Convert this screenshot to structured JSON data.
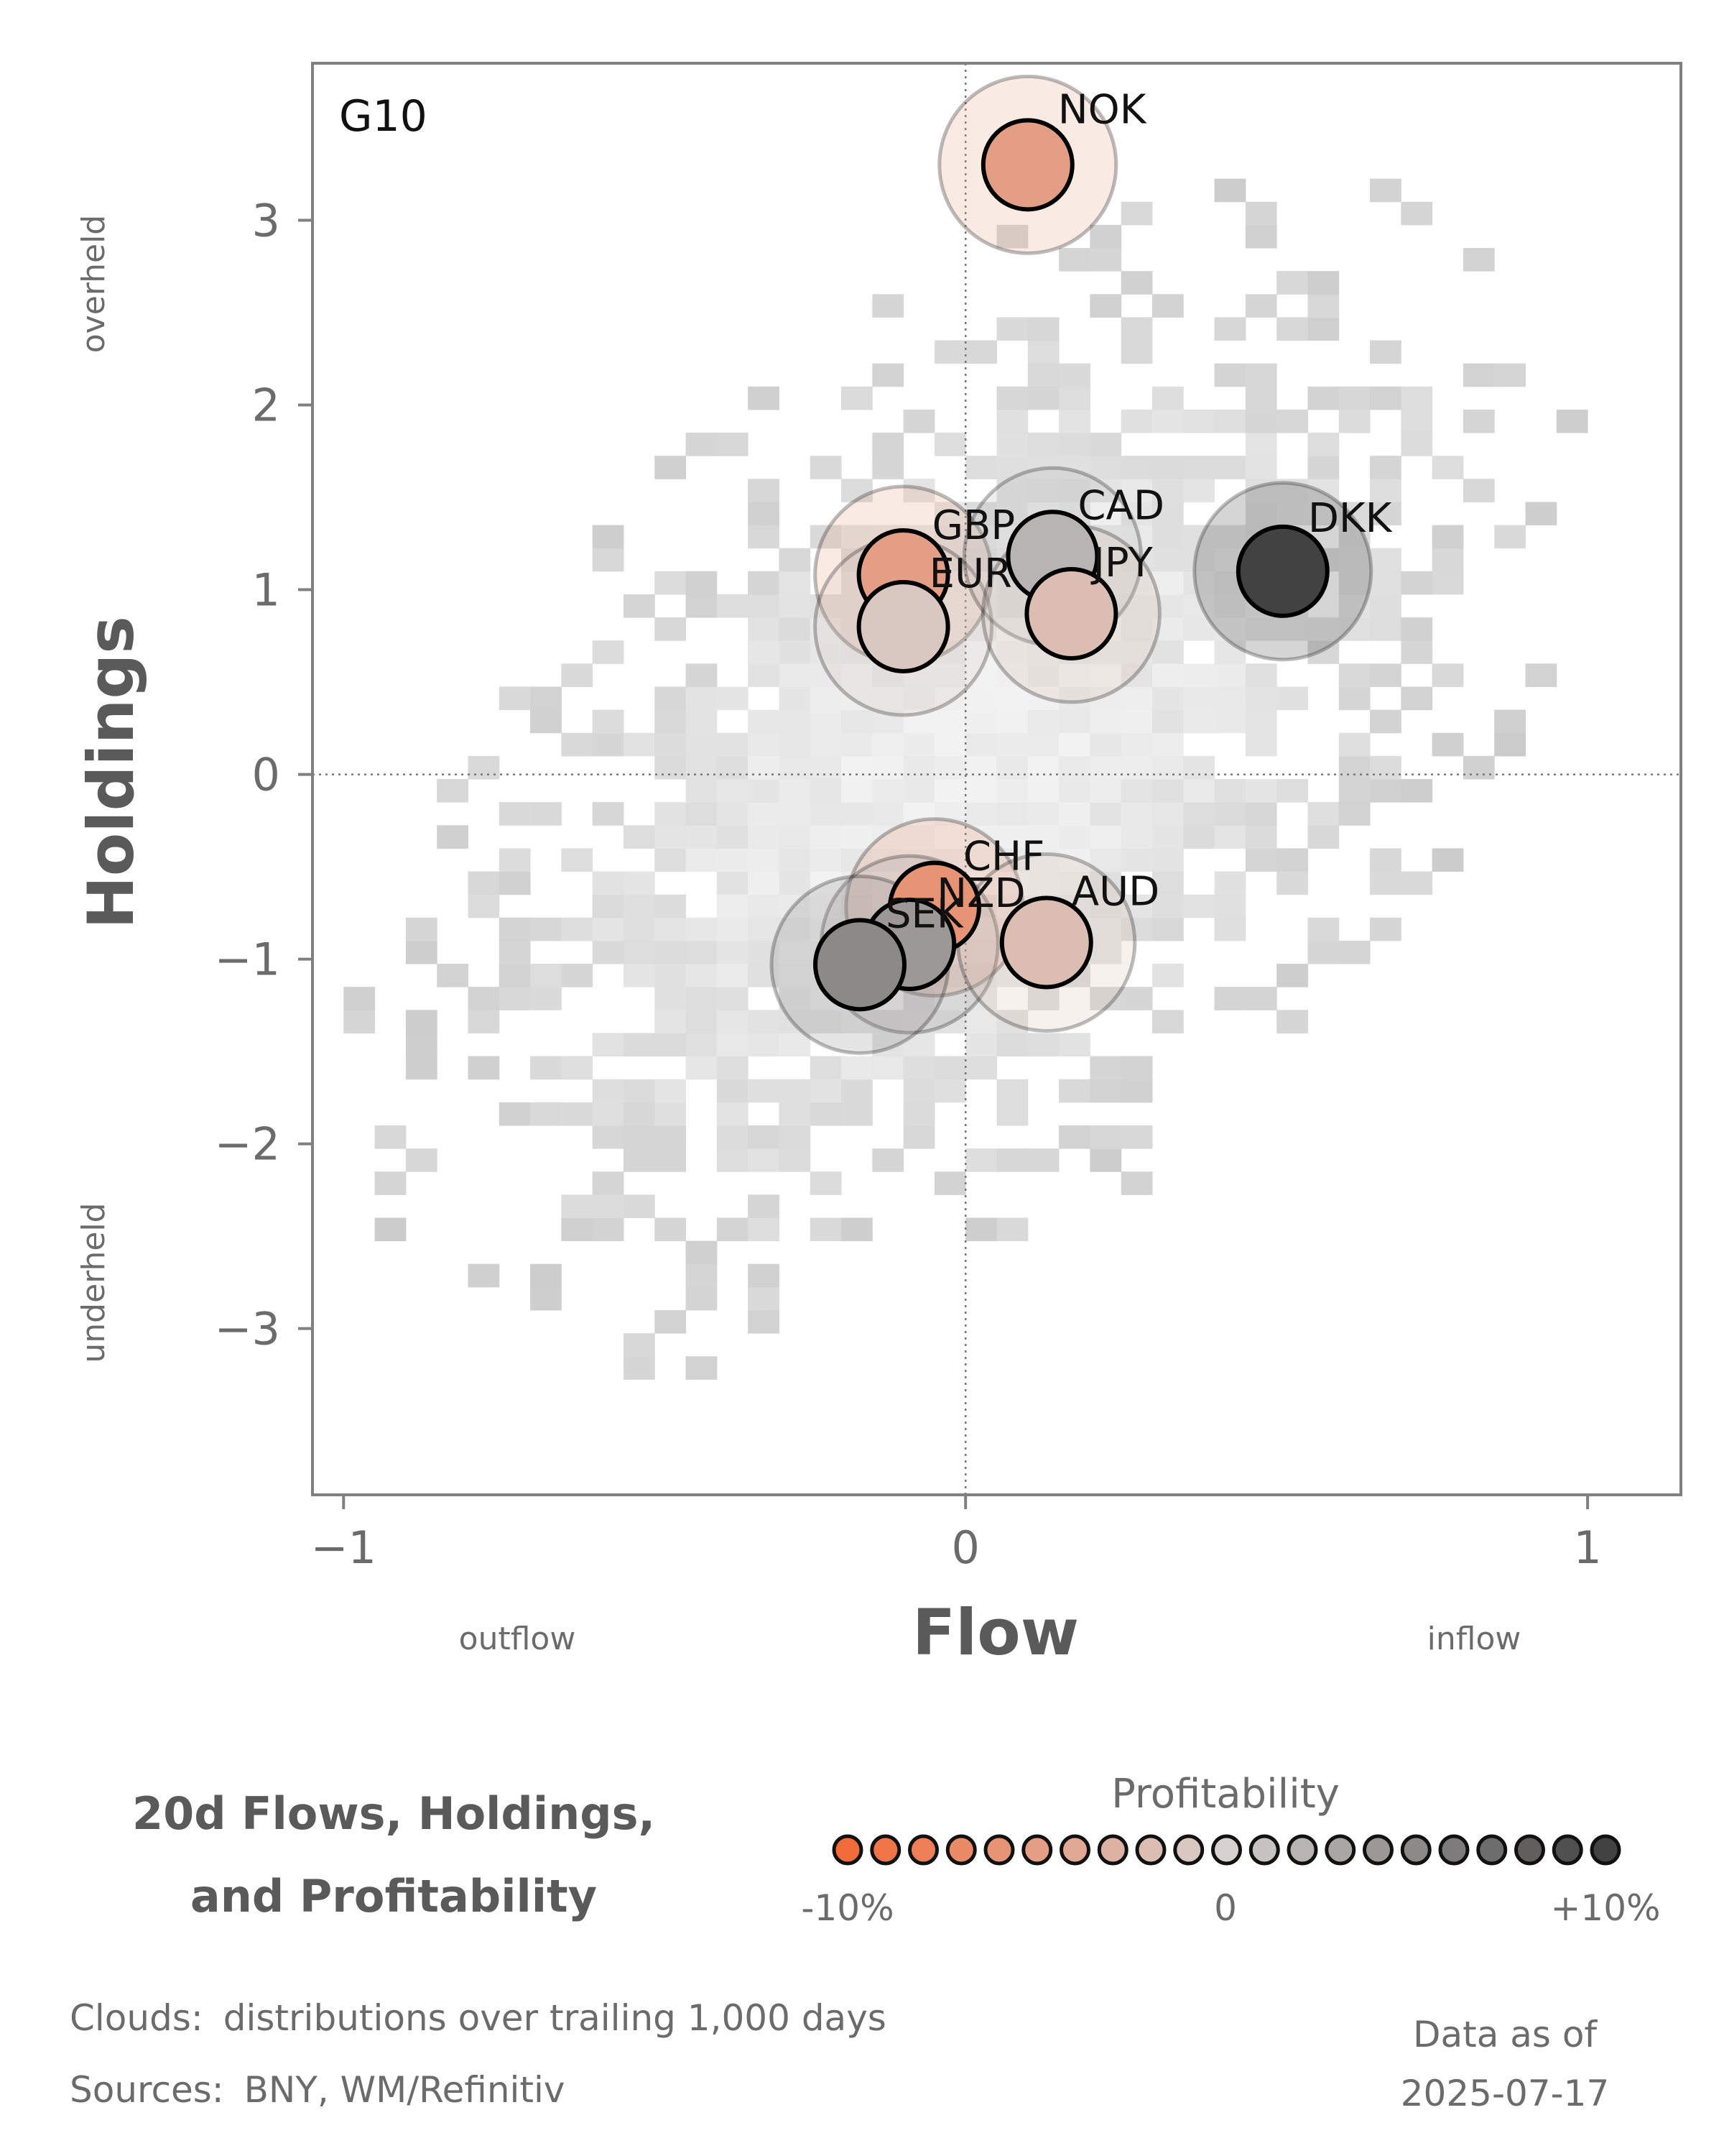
{
  "chart_data": {
    "type": "scatter",
    "panel_label": "G10",
    "xlabel": "Flow",
    "ylabel": "Holdings",
    "x_side_labels": {
      "left": "outflow",
      "right": "inflow"
    },
    "y_side_labels": {
      "top": "overheld",
      "bottom": "underheld"
    },
    "xlim": [
      -1.05,
      1.15
    ],
    "ylim": [
      -3.9,
      3.85
    ],
    "xticks": [
      {
        "value": -1,
        "label": "−1"
      },
      {
        "value": 0,
        "label": "0"
      },
      {
        "value": 1,
        "label": "1"
      }
    ],
    "yticks": [
      {
        "value": 3,
        "label": "3"
      },
      {
        "value": 2,
        "label": "2"
      },
      {
        "value": 1,
        "label": "1"
      },
      {
        "value": 0,
        "label": "0"
      },
      {
        "value": -1,
        "label": "−1"
      },
      {
        "value": -2,
        "label": "−2"
      },
      {
        "value": -3,
        "label": "−3"
      }
    ],
    "reference_lines": {
      "x": 0,
      "y": 0
    },
    "points": [
      {
        "name": "NOK",
        "x": 0.1,
        "y": 3.3,
        "profitability": -5
      },
      {
        "name": "GBP",
        "x": -0.1,
        "y": 1.08,
        "profitability": -5
      },
      {
        "name": "EUR",
        "x": -0.1,
        "y": 0.8,
        "profitability": -1
      },
      {
        "name": "CAD",
        "x": 0.14,
        "y": 1.18,
        "profitability": 2
      },
      {
        "name": "JPY",
        "x": 0.17,
        "y": 0.87,
        "profitability": -2
      },
      {
        "name": "DKK",
        "x": 0.51,
        "y": 1.1,
        "profitability": 10
      },
      {
        "name": "CHF",
        "x": -0.05,
        "y": -0.72,
        "profitability": -6
      },
      {
        "name": "NZD",
        "x": -0.09,
        "y": -0.92,
        "profitability": 4
      },
      {
        "name": "SEK",
        "x": -0.17,
        "y": -1.03,
        "profitability": 5
      },
      {
        "name": "AUD",
        "x": 0.13,
        "y": -0.91,
        "profitability": -2
      }
    ],
    "colorbar": {
      "title": "Profitability",
      "min": -10,
      "max": 10,
      "tick_labels": [
        "-10%",
        "0",
        "+10%"
      ],
      "low_color": "#f26b3a",
      "mid_color": "#d6d1d0",
      "high_color": "#424242"
    },
    "cloud_note": "distributions over trailing 1,000 days"
  },
  "footer": {
    "title_line1": "20d Flows, Holdings,",
    "title_line2": "and Profitability",
    "clouds_label": "Clouds:",
    "sources_label": "Sources:",
    "sources": "BNY, WM/Refinitiv",
    "data_as_of_label": "Data as of",
    "date": "2025-07-17"
  }
}
